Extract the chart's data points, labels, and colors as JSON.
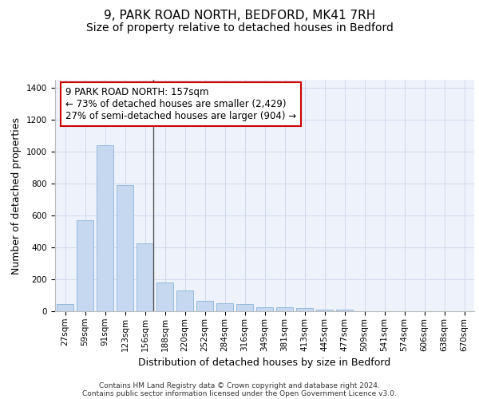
{
  "title_line1": "9, PARK ROAD NORTH, BEDFORD, MK41 7RH",
  "title_line2": "Size of property relative to detached houses in Bedford",
  "xlabel": "Distribution of detached houses by size in Bedford",
  "ylabel": "Number of detached properties",
  "bar_color": "#c5d8f0",
  "bar_edge_color": "#8ab4d8",
  "background_color": "#eef2fb",
  "grid_color": "#d0d8ec",
  "categories": [
    "27sqm",
    "59sqm",
    "91sqm",
    "123sqm",
    "156sqm",
    "188sqm",
    "220sqm",
    "252sqm",
    "284sqm",
    "316sqm",
    "349sqm",
    "381sqm",
    "413sqm",
    "445sqm",
    "477sqm",
    "509sqm",
    "541sqm",
    "574sqm",
    "606sqm",
    "638sqm",
    "670sqm"
  ],
  "values": [
    47,
    572,
    1042,
    790,
    425,
    180,
    128,
    63,
    50,
    47,
    27,
    25,
    20,
    12,
    10,
    0,
    0,
    0,
    0,
    0,
    0
  ],
  "ylim": [
    0,
    1450
  ],
  "yticks": [
    0,
    200,
    400,
    600,
    800,
    1000,
    1200,
    1400
  ],
  "property_line_index": 4,
  "annotation_text": "9 PARK ROAD NORTH: 157sqm\n← 73% of detached houses are smaller (2,429)\n27% of semi-detached houses are larger (904) →",
  "annotation_box_facecolor": "#ffffff",
  "annotation_box_edgecolor": "#cc0000",
  "footer_line1": "Contains HM Land Registry data © Crown copyright and database right 2024.",
  "footer_line2": "Contains public sector information licensed under the Open Government Licence v3.0.",
  "title_fontsize": 11,
  "subtitle_fontsize": 10,
  "axis_label_fontsize": 9,
  "tick_fontsize": 7.5,
  "annotation_fontsize": 8.5,
  "footer_fontsize": 6.5
}
